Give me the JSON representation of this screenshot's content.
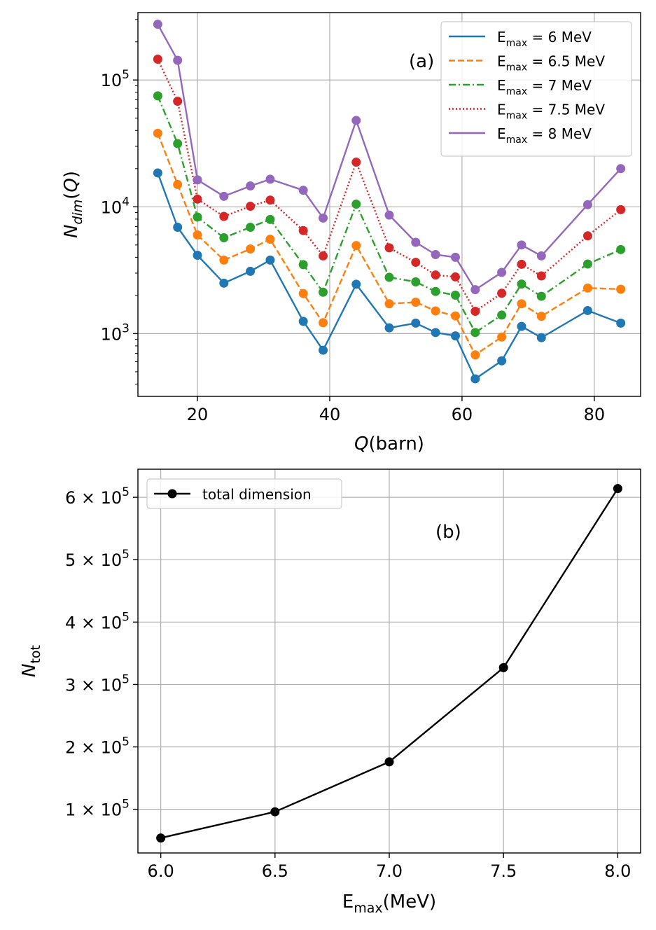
{
  "chart_data": [
    {
      "type": "line",
      "panel_label": "(a)",
      "xlabel": "Q(barn)",
      "ylabel": "N_dim(Q)",
      "yscale": "log",
      "xlim": [
        11,
        87
      ],
      "ylim": [
        320,
        340000
      ],
      "xticks": [
        20,
        40,
        60,
        80
      ],
      "yticks": [
        {
          "value": 1000,
          "base": "10",
          "exp": "3"
        },
        {
          "value": 10000,
          "base": "10",
          "exp": "4"
        },
        {
          "value": 100000,
          "base": "10",
          "exp": "5"
        }
      ],
      "grid": true,
      "legend_position": "top-right",
      "x": [
        14,
        17,
        20,
        24,
        28,
        31,
        36,
        39,
        44,
        49,
        53,
        56,
        59,
        62,
        66,
        69,
        72,
        79,
        84
      ],
      "series": [
        {
          "name_base": "E",
          "name_sub": "max",
          "name_rest": " = 6 MeV",
          "color": "#1f77b4",
          "dash": "",
          "values": [
            18500,
            6900,
            4150,
            2500,
            3100,
            3800,
            1250,
            740,
            2450,
            1110,
            1210,
            1020,
            960,
            440,
            610,
            1140,
            930,
            1520,
            1210
          ]
        },
        {
          "name_base": "E",
          "name_sub": "max",
          "name_rest": " = 6.5 MeV",
          "color": "#ff7f0e",
          "dash": "9,4",
          "values": [
            38000,
            15000,
            6000,
            3800,
            4650,
            5550,
            2070,
            1220,
            4950,
            1720,
            1770,
            1510,
            1380,
            680,
            940,
            1720,
            1370,
            2290,
            2240
          ]
        },
        {
          "name_base": "E",
          "name_sub": "max",
          "name_rest": " = 7 MeV",
          "color": "#2ca02c",
          "dash": "10,4,2,4",
          "values": [
            75000,
            31500,
            8300,
            5700,
            6900,
            7950,
            3500,
            2120,
            10500,
            2780,
            2560,
            2150,
            2010,
            1020,
            1400,
            2460,
            1970,
            3540,
            4600
          ]
        },
        {
          "name_base": "E",
          "name_sub": "max",
          "name_rest": " = 7.5 MeV",
          "color": "#d62728",
          "dash": "2,3",
          "values": [
            146000,
            68000,
            11500,
            8400,
            10100,
            11300,
            6500,
            4100,
            22500,
            4750,
            3650,
            2900,
            2800,
            1500,
            2080,
            3520,
            2850,
            5900,
            9500
          ]
        },
        {
          "name_base": "E",
          "name_sub": "max",
          "name_rest": " = 8 MeV",
          "color": "#9467bd",
          "dash": "",
          "values": [
            275000,
            143000,
            16300,
            12100,
            14600,
            16500,
            13500,
            8150,
            48000,
            8600,
            5250,
            4200,
            4000,
            2220,
            3040,
            5000,
            4100,
            10400,
            20000
          ]
        }
      ]
    },
    {
      "type": "line",
      "panel_label": "(b)",
      "xlabel_base": "E",
      "xlabel_sub": "max",
      "xlabel_rest": "(MeV)",
      "ylabel_base": "N",
      "ylabel_sub": "tot",
      "xlim": [
        5.9,
        8.1
      ],
      "ylim": [
        30000,
        645000
      ],
      "xticks": [
        {
          "value": 6.0,
          "label": "6.0"
        },
        {
          "value": 6.5,
          "label": "6.5"
        },
        {
          "value": 7.0,
          "label": "7.0"
        },
        {
          "value": 7.5,
          "label": "7.5"
        },
        {
          "value": 8.0,
          "label": "8.0"
        }
      ],
      "yticks": [
        {
          "value": 100000,
          "mant": "1",
          "times": "×",
          "base": "10",
          "exp": "5"
        },
        {
          "value": 200000,
          "mant": "2",
          "times": "×",
          "base": "10",
          "exp": "5"
        },
        {
          "value": 300000,
          "mant": "3",
          "times": "×",
          "base": "10",
          "exp": "5"
        },
        {
          "value": 400000,
          "mant": "4",
          "times": "×",
          "base": "10",
          "exp": "5"
        },
        {
          "value": 500000,
          "mant": "5",
          "times": "×",
          "base": "10",
          "exp": "5"
        },
        {
          "value": 600000,
          "mant": "6",
          "times": "×",
          "base": "10",
          "exp": "5"
        }
      ],
      "grid": true,
      "legend_position": "top-left",
      "x": [
        6.0,
        6.5,
        7.0,
        7.5,
        8.0
      ],
      "series": [
        {
          "name": "total dimension",
          "color": "#000000",
          "values": [
            54000,
            96000,
            176000,
            327000,
            614000
          ]
        }
      ]
    }
  ]
}
